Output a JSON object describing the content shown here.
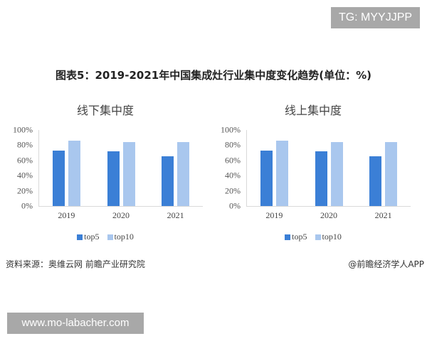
{
  "badges": {
    "tg": "TG: MYYJJPP",
    "url": "www.mo-labacher.com"
  },
  "figure": {
    "title": "图表5：2019-2021年中国集成灶行业集中度变化趋势(单位：%)",
    "source": "资料来源：奥维云网 前瞻产业研究院",
    "credit": "@前瞻经济学人APP"
  },
  "colors": {
    "top5": "#3b7fd6",
    "top10": "#a9c7ee"
  },
  "chart_data": [
    {
      "type": "bar",
      "title": "线下集中度",
      "categories": [
        "2019",
        "2020",
        "2021"
      ],
      "series": [
        {
          "name": "top5",
          "values": [
            73,
            72,
            65
          ]
        },
        {
          "name": "top10",
          "values": [
            86,
            84,
            84
          ]
        }
      ],
      "xlabel": "",
      "ylabel": "",
      "ylim": [
        0,
        100
      ],
      "yticks": [
        "0%",
        "20%",
        "40%",
        "60%",
        "80%",
        "100%"
      ],
      "legend_position": "bottom",
      "grid": false
    },
    {
      "type": "bar",
      "title": "线上集中度",
      "categories": [
        "2019",
        "2020",
        "2021"
      ],
      "series": [
        {
          "name": "top5",
          "values": [
            73,
            72,
            65
          ]
        },
        {
          "name": "top10",
          "values": [
            86,
            84,
            84
          ]
        }
      ],
      "xlabel": "",
      "ylabel": "",
      "ylim": [
        0,
        100
      ],
      "yticks": [
        "0%",
        "20%",
        "40%",
        "60%",
        "80%",
        "100%"
      ],
      "legend_position": "bottom",
      "grid": false
    }
  ]
}
